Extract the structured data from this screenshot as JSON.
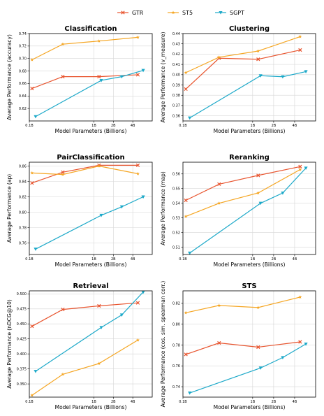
{
  "legend": [
    {
      "name": "GTR",
      "color": "#E8542E",
      "marker": "x"
    },
    {
      "name": "ST5",
      "color": "#F5A623",
      "marker": "star"
    },
    {
      "name": "SGPT",
      "color": "#1DA9C9",
      "marker": "tri"
    }
  ],
  "chart_data": [
    {
      "type": "line",
      "title": "Classification",
      "xlabel": "Model Parameters (Billions)",
      "ylabel": "Average Performance (accuracy)",
      "xscale": "log",
      "xlim": [
        0.1,
        8
      ],
      "xticks": [
        "0.1B",
        "1B",
        "2B",
        "4B"
      ],
      "ylim": [
        0.6,
        0.74
      ],
      "yticks": [
        "0.62",
        "0.64",
        "0.66",
        "0.68",
        "0.70",
        "0.72",
        "0.74"
      ],
      "grid": true,
      "series": [
        {
          "name": "GTR",
          "x": [
            0.11,
            0.33,
            1.2,
            4.8
          ],
          "y": [
            0.652,
            0.671,
            0.671,
            0.674
          ]
        },
        {
          "name": "ST5",
          "x": [
            0.11,
            0.33,
            1.2,
            4.8
          ],
          "y": [
            0.698,
            0.723,
            0.728,
            0.734
          ]
        },
        {
          "name": "SGPT",
          "x": [
            0.125,
            1.3,
            2.7,
            5.8
          ],
          "y": [
            0.607,
            0.665,
            0.671,
            0.681
          ]
        }
      ]
    },
    {
      "type": "line",
      "title": "Clustering",
      "xlabel": "Model Parameters (Billions)",
      "ylabel": "Average Performance (v_measure)",
      "xscale": "log",
      "xlim": [
        0.1,
        8
      ],
      "xticks": [
        "0.1B",
        "1B",
        "2B",
        "4B"
      ],
      "ylim": [
        0.355,
        0.44
      ],
      "yticks": [
        "0.36",
        "0.37",
        "0.38",
        "0.39",
        "0.40",
        "0.41",
        "0.42",
        "0.43",
        "0.44"
      ],
      "grid": true,
      "series": [
        {
          "name": "GTR",
          "x": [
            0.11,
            0.33,
            1.2,
            4.8
          ],
          "y": [
            0.386,
            0.416,
            0.415,
            0.424
          ]
        },
        {
          "name": "ST5",
          "x": [
            0.11,
            0.33,
            1.2,
            4.8
          ],
          "y": [
            0.402,
            0.417,
            0.423,
            0.437
          ]
        },
        {
          "name": "SGPT",
          "x": [
            0.125,
            1.3,
            2.7,
            5.8
          ],
          "y": [
            0.358,
            0.399,
            0.398,
            0.403
          ]
        }
      ]
    },
    {
      "type": "line",
      "title": "PairClassification",
      "xlabel": "Model Parameters (Billions)",
      "ylabel": "Average Performance (ap)",
      "xscale": "log",
      "xlim": [
        0.1,
        8
      ],
      "xticks": [
        "0.1B",
        "1B",
        "2B",
        "4B"
      ],
      "ylim": [
        0.745,
        0.865
      ],
      "yticks": [
        "0.76",
        "0.78",
        "0.80",
        "0.82",
        "0.84",
        "0.86"
      ],
      "grid": true,
      "series": [
        {
          "name": "GTR",
          "x": [
            0.11,
            0.33,
            1.2,
            4.8
          ],
          "y": [
            0.838,
            0.852,
            0.861,
            0.861
          ]
        },
        {
          "name": "ST5",
          "x": [
            0.11,
            0.33,
            1.2,
            4.8
          ],
          "y": [
            0.851,
            0.849,
            0.86,
            0.85
          ]
        },
        {
          "name": "SGPT",
          "x": [
            0.125,
            1.3,
            2.7,
            5.8
          ],
          "y": [
            0.752,
            0.796,
            0.807,
            0.82
          ]
        }
      ]
    },
    {
      "type": "line",
      "title": "Reranking",
      "xlabel": "Model Parameters (Billions)",
      "ylabel": "Average Performance (map)",
      "xscale": "log",
      "xlim": [
        0.1,
        8
      ],
      "xticks": [
        "0.1B",
        "1B",
        "2B",
        "4B"
      ],
      "ylim": [
        0.505,
        0.568
      ],
      "yticks": [
        "0.51",
        "0.52",
        "0.53",
        "0.54",
        "0.55",
        "0.56"
      ],
      "grid": true,
      "series": [
        {
          "name": "GTR",
          "x": [
            0.11,
            0.33,
            1.2,
            4.8
          ],
          "y": [
            0.542,
            0.553,
            0.559,
            0.565
          ]
        },
        {
          "name": "ST5",
          "x": [
            0.11,
            0.33,
            1.2,
            4.8
          ],
          "y": [
            0.531,
            0.54,
            0.547,
            0.563
          ]
        },
        {
          "name": "SGPT",
          "x": [
            0.125,
            1.3,
            2.7,
            5.8
          ],
          "y": [
            0.506,
            0.54,
            0.547,
            0.564
          ]
        }
      ]
    },
    {
      "type": "line",
      "title": "Retrieval",
      "xlabel": "Model Parameters (Billions)",
      "ylabel": "Average Performance (nDCG@10)",
      "xscale": "log",
      "xlim": [
        0.1,
        8
      ],
      "xticks": [
        "0.1B",
        "1B",
        "2B",
        "4B"
      ],
      "ylim": [
        0.328,
        0.505
      ],
      "yticks": [
        "0.350",
        "0.375",
        "0.400",
        "0.425",
        "0.450",
        "0.475",
        "0.500"
      ],
      "grid": true,
      "series": [
        {
          "name": "GTR",
          "x": [
            0.11,
            0.33,
            1.2,
            4.8
          ],
          "y": [
            0.446,
            0.474,
            0.48,
            0.485
          ]
        },
        {
          "name": "ST5",
          "x": [
            0.11,
            0.33,
            1.2,
            4.8
          ],
          "y": [
            0.331,
            0.366,
            0.384,
            0.423
          ]
        },
        {
          "name": "SGPT",
          "x": [
            0.125,
            1.3,
            2.7,
            5.8
          ],
          "y": [
            0.371,
            0.444,
            0.465,
            0.503
          ]
        }
      ]
    },
    {
      "type": "line",
      "title": "STS",
      "xlabel": "Model Parameters (Billions)",
      "ylabel": "Average Performance (cos. sim. spearman corr.)",
      "xscale": "log",
      "xlim": [
        0.1,
        8
      ],
      "xticks": [
        "0.1B",
        "1B",
        "2B",
        "4B"
      ],
      "ylim": [
        0.73,
        0.832
      ],
      "yticks": [
        "0.74",
        "0.76",
        "0.78",
        "0.80",
        "0.82"
      ],
      "grid": true,
      "series": [
        {
          "name": "GTR",
          "x": [
            0.11,
            0.33,
            1.2,
            4.8
          ],
          "y": [
            0.771,
            0.782,
            0.778,
            0.783
          ]
        },
        {
          "name": "ST5",
          "x": [
            0.11,
            0.33,
            1.2,
            4.8
          ],
          "y": [
            0.811,
            0.818,
            0.816,
            0.826
          ]
        },
        {
          "name": "SGPT",
          "x": [
            0.125,
            1.3,
            2.7,
            5.8
          ],
          "y": [
            0.734,
            0.758,
            0.768,
            0.781
          ]
        }
      ]
    }
  ]
}
